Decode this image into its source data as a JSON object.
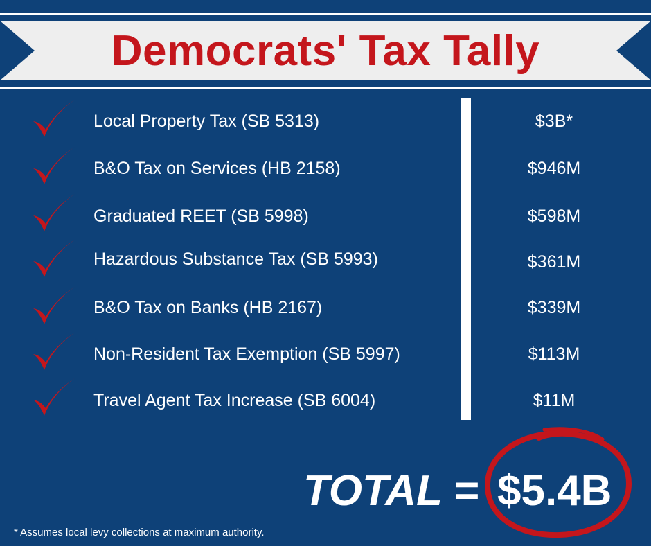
{
  "header": {
    "title": "Democrats' Tax Tally"
  },
  "items": [
    {
      "label": "Local Property Tax (SB 5313)",
      "amount": "$3B*"
    },
    {
      "label": "B&O Tax on Services (HB 2158)",
      "amount": "$946M"
    },
    {
      "label": "Graduated REET (SB 5998)",
      "amount": "$598M"
    },
    {
      "label": "Hazardous Substance Tax (SB 5993)",
      "amount": "$361M"
    },
    {
      "label": "B&O Tax on Banks (HB 2167)",
      "amount": "$339M"
    },
    {
      "label": "Non-Resident Tax Exemption (SB 5997)",
      "amount": "$113M"
    },
    {
      "label": "Travel Agent Tax Increase (SB 6004)",
      "amount": "$11M"
    }
  ],
  "total": {
    "label": "TOTAL =",
    "value": "$5.4B"
  },
  "footnote": "* Assumes local levy collections at maximum authority.",
  "colors": {
    "background": "#0e4178",
    "banner": "#eeeeee",
    "accent_red": "#c4161c",
    "text": "#ffffff"
  },
  "icons": {
    "check": "red-checkmark-icon",
    "circle": "red-hand-drawn-circle"
  }
}
